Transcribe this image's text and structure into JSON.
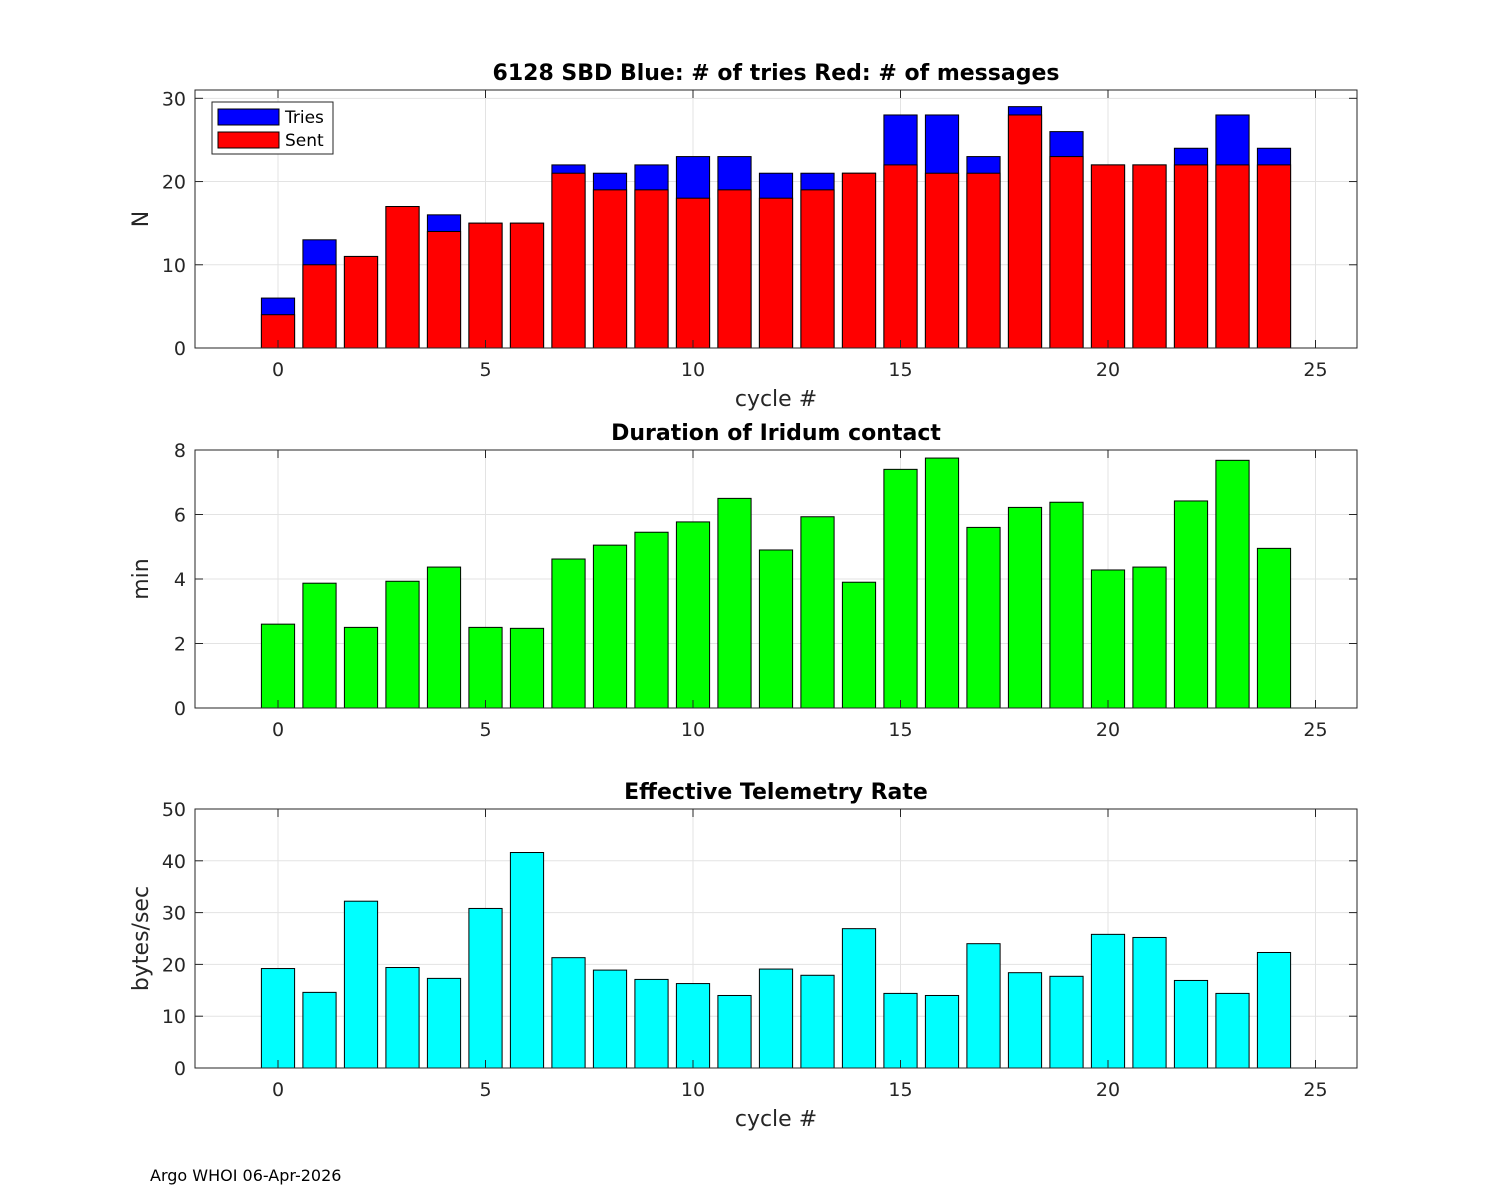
{
  "chart_data": [
    {
      "type": "bar",
      "stacked_overlay": true,
      "title": "6128 SBD  Blue: # of tries   Red: # of messages",
      "xlabel": "cycle #",
      "ylabel": "N",
      "xlim": [
        -2,
        26
      ],
      "ylim": [
        0,
        31
      ],
      "xticks": [
        0,
        5,
        10,
        15,
        20,
        25
      ],
      "yticks": [
        0,
        10,
        20,
        30
      ],
      "grid": true,
      "legend_position": "top-left",
      "x": [
        0,
        1,
        2,
        3,
        4,
        5,
        6,
        7,
        8,
        9,
        10,
        11,
        12,
        13,
        14,
        15,
        16,
        17,
        18,
        19,
        20,
        21,
        22,
        23,
        24
      ],
      "series": [
        {
          "name": "Tries",
          "color": "#0000ff",
          "values": [
            6,
            13,
            11,
            17,
            16,
            15,
            15,
            22,
            21,
            22,
            23,
            23,
            21,
            21,
            21,
            28,
            28,
            23,
            29,
            26,
            22,
            22,
            24,
            28,
            24
          ]
        },
        {
          "name": "Sent",
          "color": "#ff0000",
          "values": [
            4,
            10,
            11,
            17,
            14,
            15,
            15,
            21,
            19,
            19,
            18,
            19,
            18,
            19,
            21,
            22,
            21,
            21,
            28,
            23,
            22,
            22,
            22,
            22,
            22
          ]
        }
      ]
    },
    {
      "type": "bar",
      "title": "Duration of Iridum contact",
      "xlabel": "",
      "ylabel": "min",
      "xlim": [
        -2,
        26
      ],
      "ylim": [
        0,
        8
      ],
      "xticks": [
        0,
        5,
        10,
        15,
        20,
        25
      ],
      "yticks": [
        0,
        2,
        4,
        6,
        8
      ],
      "grid": true,
      "x": [
        -1,
        0,
        1,
        2,
        3,
        4,
        5,
        6,
        7,
        8,
        9,
        10,
        11,
        12,
        13,
        14,
        15,
        16,
        17,
        18,
        19,
        20,
        21,
        22,
        23,
        24
      ],
      "series": [
        {
          "name": "Duration",
          "color": "#00ff00",
          "values": [
            0,
            2.6,
            3.87,
            2.5,
            3.93,
            4.37,
            2.5,
            2.47,
            4.62,
            5.05,
            5.45,
            5.77,
            6.5,
            4.9,
            5.93,
            3.9,
            7.4,
            7.75,
            5.6,
            6.22,
            6.38,
            4.28,
            4.37,
            6.42,
            7.68,
            4.95
          ]
        }
      ]
    },
    {
      "type": "bar",
      "title": "Effective Telemetry Rate",
      "xlabel": "cycle #",
      "ylabel": "bytes/sec",
      "xlim": [
        -2,
        26
      ],
      "ylim": [
        0,
        50
      ],
      "xticks": [
        0,
        5,
        10,
        15,
        20,
        25
      ],
      "yticks": [
        0,
        10,
        20,
        30,
        40,
        50
      ],
      "grid": true,
      "x": [
        0,
        1,
        2,
        3,
        4,
        5,
        6,
        7,
        8,
        9,
        10,
        11,
        12,
        13,
        14,
        15,
        16,
        17,
        18,
        19,
        20,
        21,
        22,
        23,
        24
      ],
      "series": [
        {
          "name": "Rate",
          "color": "#00ffff",
          "values": [
            19.2,
            14.6,
            32.2,
            19.4,
            17.3,
            30.8,
            41.6,
            21.3,
            18.9,
            17.1,
            16.3,
            14.0,
            19.1,
            17.9,
            26.9,
            14.4,
            14.0,
            24.0,
            18.4,
            17.7,
            25.8,
            25.2,
            16.9,
            14.4,
            22.3
          ]
        }
      ]
    }
  ],
  "footer": "Argo WHOI 06-Apr-2026"
}
